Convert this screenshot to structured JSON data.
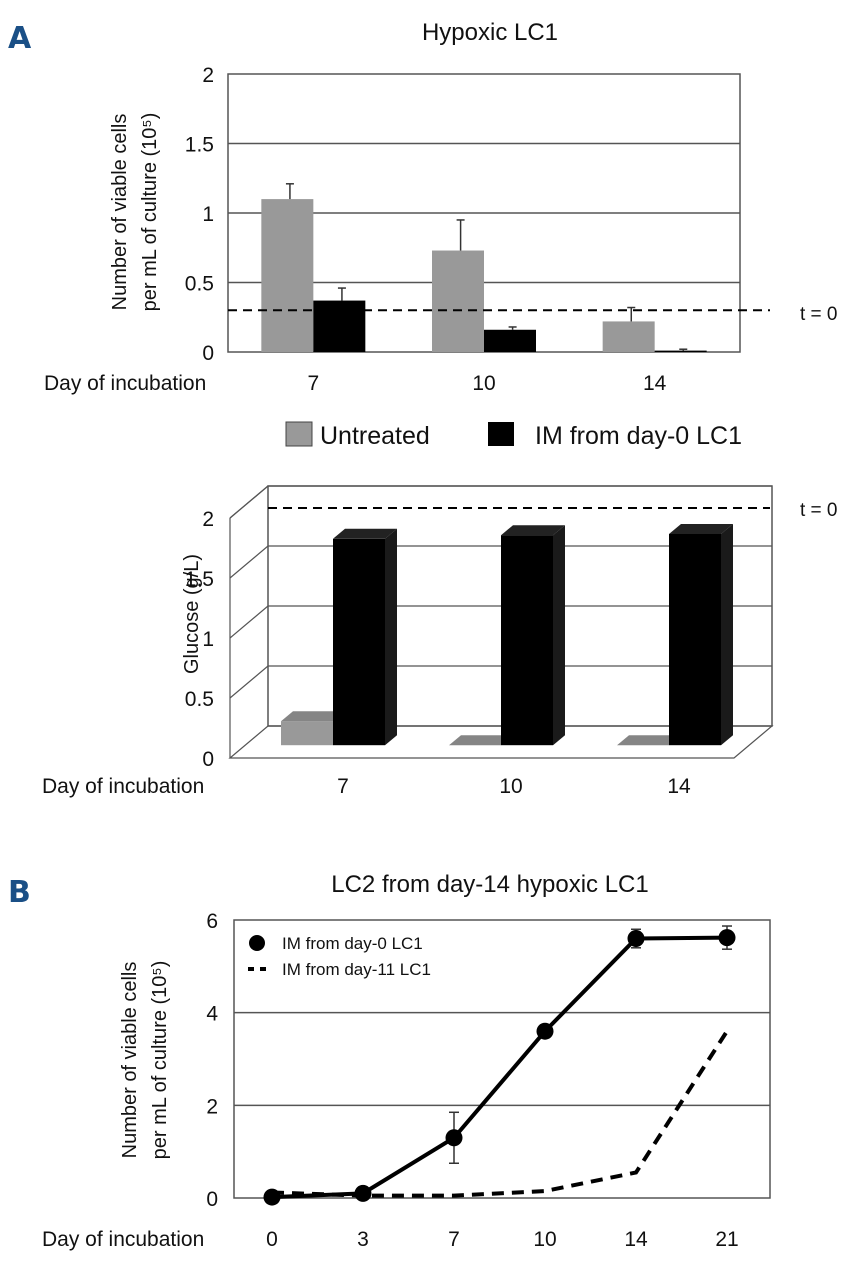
{
  "panels": {
    "a_label": "A",
    "b_label": "B"
  },
  "chart_data": [
    {
      "type": "bar",
      "title": "Hypoxic LC1",
      "ylabel_line1": "Number of viable cells",
      "ylabel_line2": "per mL of culture (10⁵)",
      "xlabel": "Day of incubation",
      "categories": [
        "7",
        "10",
        "14"
      ],
      "yticks": [
        "0",
        "0.5",
        "1",
        "1.5",
        "2"
      ],
      "ylim": [
        0,
        2
      ],
      "series": [
        {
          "name": "Untreated",
          "color": "#999999",
          "values": [
            1.1,
            0.73,
            0.22
          ],
          "errors": [
            0.11,
            0.22,
            0.1
          ]
        },
        {
          "name": "IM from day-0 LC1",
          "color": "#000000",
          "values": [
            0.37,
            0.16,
            0.01
          ],
          "errors": [
            0.09,
            0.02,
            0.01
          ]
        }
      ],
      "reference": {
        "value": 0.3,
        "label": "t = 0"
      }
    },
    {
      "type": "bar",
      "variant": "3d",
      "ylabel": "Glucose (g/L)",
      "xlabel": "Day of incubation",
      "categories": [
        "7",
        "10",
        "14"
      ],
      "yticks": [
        "0",
        "0.5",
        "1",
        "1.5",
        "2"
      ],
      "ylim": [
        0,
        2
      ],
      "series": [
        {
          "name": "Untreated",
          "color": "#999999",
          "values": [
            0.2,
            0.0,
            0.0
          ]
        },
        {
          "name": "IM from day-0 LC1",
          "color": "#000000",
          "values": [
            1.72,
            1.75,
            1.76
          ]
        }
      ],
      "reference": {
        "value": 2.0,
        "label": "t = 0"
      }
    },
    {
      "type": "line",
      "title": "LC2 from day-14 hypoxic LC1",
      "ylabel_line1": "Number of viable cells",
      "ylabel_line2": "per mL of culture (10⁵)",
      "xlabel": "Day of incubation",
      "categories": [
        "0",
        "3",
        "7",
        "10",
        "14",
        "21"
      ],
      "yticks": [
        "0",
        "2",
        "4",
        "6"
      ],
      "ylim": [
        0,
        6
      ],
      "series": [
        {
          "name": "IM from day-0 LC1",
          "style": "solid",
          "values": [
            0.02,
            0.1,
            1.3,
            3.6,
            5.6,
            5.62
          ],
          "errors": [
            0,
            0,
            0.55,
            0,
            0.2,
            0.25
          ]
        },
        {
          "name": "IM from day-11 LC1",
          "style": "dashed",
          "values": [
            0.12,
            0.05,
            0.05,
            0.15,
            0.55,
            3.6
          ]
        }
      ]
    }
  ]
}
